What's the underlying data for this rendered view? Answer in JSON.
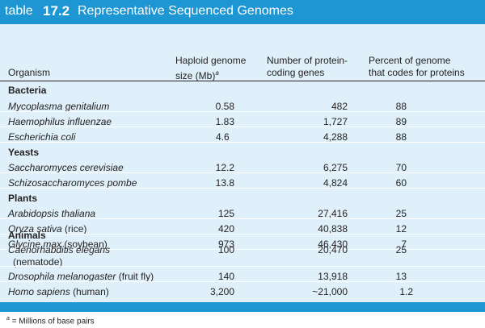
{
  "table": {
    "prefix": "table",
    "number": "17.2",
    "caption": "Representative Sequenced Genomes"
  },
  "headers": {
    "organism": "Organism",
    "size_line1": "Haploid genome",
    "size_line2": "size (Mb)",
    "size_marker": "a",
    "genes_line1": "Number of protein-",
    "genes_line2": "coding genes",
    "pct_line1": "Percent of genome",
    "pct_line2": "that codes for proteins"
  },
  "groups": {
    "bacteria": "Bacteria",
    "yeasts": "Yeasts",
    "plants": "Plants",
    "animals": "Animals"
  },
  "rows": [
    {
      "sci": "Mycoplasma genitalium",
      "common": "",
      "size": "0.58",
      "genes": "482",
      "pct": "88"
    },
    {
      "sci": "Haemophilus influenzae",
      "common": "",
      "size": "1.83",
      "genes": "1,727",
      "pct": "89"
    },
    {
      "sci": "Escherichia coli",
      "common": "",
      "size": "4.6",
      "genes": "4,288",
      "pct": "88"
    },
    {
      "sci": "Saccharomyces cerevisiae",
      "common": "",
      "size": "12.2",
      "genes": "6,275",
      "pct": "70"
    },
    {
      "sci": "Schizosaccharomyces pombe",
      "common": "",
      "size": "13.8",
      "genes": "4,824",
      "pct": "60"
    },
    {
      "sci": "Arabidopsis thaliana",
      "common": "",
      "size": "125",
      "genes": "27,416",
      "pct": "25"
    },
    {
      "sci": "Oryza sativa",
      "common": "(rice)",
      "size": "420",
      "genes": "40,838",
      "pct": "12"
    },
    {
      "sci": "Glycine max",
      "common": "(soybean)",
      "size": "973",
      "genes": "46,430",
      "pct": "7"
    },
    {
      "sci": "Caenorhabditis elegans",
      "common": "(nematode)",
      "size": "100",
      "genes": "20,470",
      "pct": "25"
    },
    {
      "sci": "Drosophila melanogaster",
      "common": "(fruit fly)",
      "size": "140",
      "genes": "13,918",
      "pct": "13"
    },
    {
      "sci": "Homo sapiens",
      "common": "(human)",
      "size": "3,200",
      "genes": "~21,000",
      "pct": "1.2"
    }
  ],
  "footnote": {
    "marker": "a",
    "text": "= Millions of base pairs"
  },
  "colors": {
    "accent": "#1d96d3",
    "table_background": "#dff0fa",
    "text": "#231f20"
  }
}
